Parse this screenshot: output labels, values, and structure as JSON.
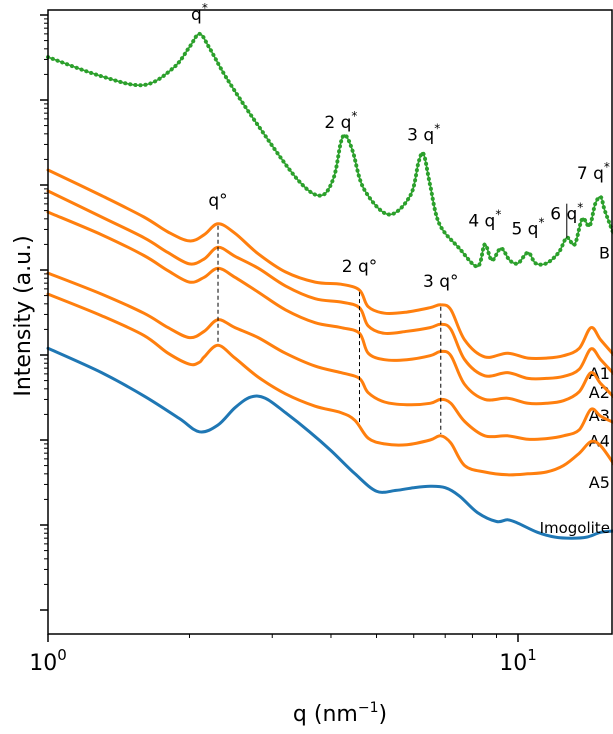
{
  "chart_data": {
    "type": "line",
    "title": "",
    "xlabel": "q (nm",
    "xlabel_sup": "−1",
    "xlabel_close": ")",
    "ylabel": "Intensity (a.u.)",
    "x_scale": "log",
    "y_scale": "log",
    "xlim": [
      1,
      16
    ],
    "x_ticks": [
      {
        "value": 1,
        "base": "10",
        "exp": "0"
      },
      {
        "value": 10,
        "base": "10",
        "exp": "1"
      }
    ],
    "grid": false,
    "legend": "none",
    "colors": {
      "B": "#2ca02c",
      "A": "#ff7f0e",
      "Imogolite": "#1f77b4"
    },
    "series": [
      {
        "name": "B",
        "label": "B",
        "color": "#2ca02c",
        "marker": "dots",
        "q": [
          1.0,
          1.3,
          1.6,
          1.85,
          2.0,
          2.1,
          2.2,
          2.4,
          2.8,
          3.4,
          3.8,
          4.05,
          4.2,
          4.3,
          4.45,
          4.7,
          5.3,
          5.9,
          6.15,
          6.3,
          6.5,
          6.8,
          7.5,
          8.2,
          8.5,
          8.8,
          9.2,
          9.6,
          10.0,
          10.5,
          10.9,
          11.5,
          12.2,
          12.7,
          13.2,
          13.7,
          14.2,
          14.6,
          15.0,
          15.3,
          16.0
        ],
        "intensity": [
          3.2,
          1.9,
          1.5,
          2.4,
          4.2,
          6.0,
          4.2,
          1.8,
          0.5,
          0.115,
          0.075,
          0.12,
          0.32,
          0.38,
          0.25,
          0.09,
          0.045,
          0.075,
          0.19,
          0.23,
          0.1,
          0.035,
          0.018,
          0.011,
          0.02,
          0.013,
          0.018,
          0.013,
          0.012,
          0.016,
          0.012,
          0.012,
          0.016,
          0.024,
          0.02,
          0.04,
          0.033,
          0.06,
          0.072,
          0.05,
          0.026
        ]
      },
      {
        "name": "A1",
        "label": "A1",
        "color": "#ff7f0e",
        "q": [
          1.0,
          1.3,
          1.6,
          1.8,
          2.0,
          2.15,
          2.3,
          2.5,
          2.8,
          3.2,
          3.7,
          4.2,
          4.6,
          4.8,
          5.2,
          5.8,
          6.5,
          6.85,
          7.2,
          7.7,
          8.5,
          9.5,
          10.5,
          11.5,
          12.5,
          13.5,
          14.3,
          15.0,
          16.0
        ],
        "intensity": [
          0.15,
          0.075,
          0.042,
          0.028,
          0.022,
          0.026,
          0.035,
          0.027,
          0.0155,
          0.0095,
          0.0072,
          0.0068,
          0.0058,
          0.0037,
          0.0031,
          0.0032,
          0.0036,
          0.0039,
          0.0034,
          0.0015,
          0.00095,
          0.00105,
          0.00092,
          0.00092,
          0.00098,
          0.0012,
          0.0021,
          0.0015,
          0.001
        ]
      },
      {
        "name": "A2",
        "label": "A2",
        "color": "#ff7f0e",
        "q": [
          1.0,
          1.3,
          1.6,
          1.8,
          2.0,
          2.15,
          2.3,
          2.5,
          2.8,
          3.2,
          3.7,
          4.2,
          4.6,
          4.8,
          5.2,
          5.8,
          6.5,
          6.85,
          7.2,
          7.7,
          8.5,
          9.5,
          10.5,
          11.5,
          12.5,
          13.5,
          14.3,
          15.0,
          16.0
        ],
        "intensity": [
          0.085,
          0.042,
          0.024,
          0.016,
          0.0118,
          0.0135,
          0.0185,
          0.0145,
          0.0105,
          0.0065,
          0.0046,
          0.0042,
          0.0036,
          0.0022,
          0.0018,
          0.0019,
          0.0021,
          0.0023,
          0.002,
          0.00088,
          0.00057,
          0.00062,
          0.00053,
          0.00053,
          0.00056,
          0.00068,
          0.00118,
          0.00088,
          0.0006
        ]
      },
      {
        "name": "A3",
        "label": "A3",
        "color": "#ff7f0e",
        "q": [
          1.0,
          1.3,
          1.6,
          1.8,
          2.0,
          2.15,
          2.3,
          2.5,
          2.8,
          3.2,
          3.7,
          4.2,
          4.6,
          4.8,
          5.2,
          5.8,
          6.5,
          6.85,
          7.2,
          7.7,
          8.5,
          9.5,
          10.5,
          11.5,
          12.5,
          13.5,
          14.3,
          15.0,
          16.0
        ],
        "intensity": [
          0.048,
          0.026,
          0.0148,
          0.0098,
          0.0072,
          0.0082,
          0.0105,
          0.0082,
          0.0055,
          0.0034,
          0.0024,
          0.0021,
          0.0018,
          0.00105,
          0.00088,
          0.00088,
          0.00098,
          0.0011,
          0.00098,
          0.00045,
          0.0003,
          0.00031,
          0.00027,
          0.00027,
          0.00029,
          0.00037,
          0.00062,
          0.00046,
          0.00032
        ]
      },
      {
        "name": "A4",
        "label": "A4",
        "color": "#ff7f0e",
        "q": [
          1.0,
          1.3,
          1.6,
          1.8,
          2.0,
          2.15,
          2.3,
          2.5,
          2.8,
          3.2,
          3.7,
          4.2,
          4.6,
          4.8,
          5.2,
          5.8,
          6.5,
          6.85,
          7.2,
          7.7,
          8.5,
          9.5,
          10.5,
          11.5,
          12.5,
          13.5,
          14.3,
          15.0,
          16.0
        ],
        "intensity": [
          0.0092,
          0.0052,
          0.0031,
          0.0021,
          0.0016,
          0.0019,
          0.0026,
          0.0021,
          0.0016,
          0.00105,
          0.00074,
          0.00062,
          0.00053,
          0.00036,
          0.00028,
          0.00026,
          0.00027,
          0.0003,
          0.00027,
          0.000165,
          0.000112,
          0.000112,
          0.000102,
          0.000104,
          0.000112,
          0.000132,
          0.00023,
          0.00019,
          0.00016
        ]
      },
      {
        "name": "A5",
        "label": "A5",
        "color": "#ff7f0e",
        "q": [
          1.0,
          1.3,
          1.6,
          1.8,
          2.0,
          2.1,
          2.15,
          2.3,
          2.5,
          2.8,
          3.2,
          3.7,
          4.2,
          4.5,
          4.8,
          5.2,
          5.8,
          6.5,
          6.85,
          7.2,
          7.7,
          8.5,
          9.5,
          10.5,
          11.5,
          12.5,
          13.5,
          14.3,
          15.0,
          16.0
        ],
        "intensity": [
          0.0052,
          0.0029,
          0.0017,
          0.00105,
          0.00078,
          0.00082,
          0.00095,
          0.0013,
          0.00092,
          0.00055,
          0.00035,
          0.00025,
          0.00021,
          0.00017,
          0.000105,
          9e-05,
          8.8e-05,
          0.0001,
          0.000112,
          9.2e-05,
          5e-05,
          4.2e-05,
          3.9e-05,
          4e-05,
          4.2e-05,
          5e-05,
          7e-05,
          9.6e-05,
          8.5e-05,
          5.2e-05
        ]
      },
      {
        "name": "Imogolite",
        "label": "Imogolite",
        "color": "#1f77b4",
        "q": [
          1.0,
          1.3,
          1.6,
          1.9,
          2.1,
          2.3,
          2.5,
          2.7,
          2.9,
          3.2,
          3.6,
          4.0,
          4.5,
          5.0,
          5.5,
          6.0,
          6.5,
          7.0,
          7.5,
          8.2,
          9.0,
          9.5,
          10.0,
          11.0,
          12.0,
          13.0,
          14.0,
          15.0,
          16.0
        ],
        "intensity": [
          0.0012,
          0.00062,
          0.00033,
          0.00018,
          0.000125,
          0.00015,
          0.00024,
          0.00032,
          0.00031,
          0.00021,
          0.000125,
          7.5e-05,
          4e-05,
          2.5e-05,
          2.55e-05,
          2.75e-05,
          2.85e-05,
          2.75e-05,
          2.2e-05,
          1.4e-05,
          1.1e-05,
          1.15e-05,
          1.05e-05,
          8.2e-06,
          7.2e-06,
          7e-06,
          7.2e-06,
          8.2e-06,
          8.5e-06
        ]
      }
    ],
    "annotations": [
      {
        "base": "q",
        "sup": "*",
        "q": 2.1
      },
      {
        "base": "2 q",
        "sup": "*",
        "q": 4.2
      },
      {
        "base": "3 q",
        "sup": "*",
        "q": 6.3
      },
      {
        "base": "4 q",
        "sup": "*",
        "q": 8.5
      },
      {
        "base": "5 q",
        "sup": "*",
        "q": 10.5
      },
      {
        "base": "6 q",
        "sup": "*",
        "q": 12.7
      },
      {
        "base": "7 q",
        "sup": "*",
        "q": 15.0
      },
      {
        "base": "q°",
        "sup": "",
        "q": 2.3
      },
      {
        "base": "2 q°",
        "sup": "",
        "q": 4.6
      },
      {
        "base": "3 q°",
        "sup": "",
        "q": 6.85
      }
    ],
    "reference_lines": [
      {
        "q": 2.3,
        "style": "dashed"
      },
      {
        "q": 4.6,
        "style": "dashed"
      },
      {
        "q": 6.85,
        "style": "dashed"
      },
      {
        "q": 12.7,
        "style": "solid"
      }
    ]
  }
}
